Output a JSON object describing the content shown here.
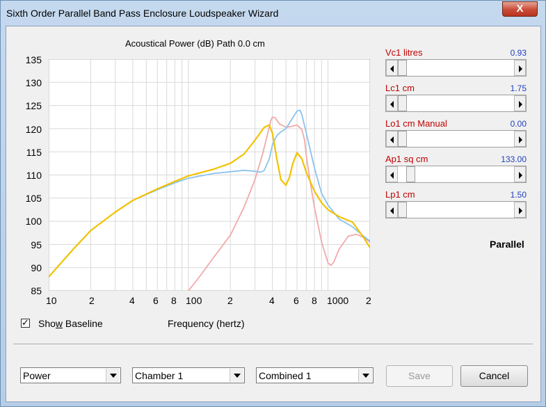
{
  "window": {
    "title": "Sixth Order Parallel Band Pass Enclosure Loudspeaker Wizard",
    "close_label": "X"
  },
  "plot": {
    "title": "Acoustical Power (dB)   Path 0.0 cm",
    "x_axis_label": "Frequency (hertz)",
    "y_ticks": [
      "135",
      "130",
      "125",
      "120",
      "115",
      "110",
      "105",
      "100",
      "95",
      "90",
      "85"
    ],
    "x_tick_labels": [
      "10",
      "2",
      "4",
      "6",
      "8",
      "100",
      "2",
      "4",
      "6",
      "8",
      "1000",
      "2"
    ],
    "colors": {
      "blue": "#8ac3ee",
      "pink": "#f2a9a9",
      "yellow": "#f2c200"
    }
  },
  "chart_data": {
    "type": "line",
    "xscale": "log",
    "xlim": [
      10,
      2000
    ],
    "ylim": [
      85,
      135
    ],
    "series": [
      {
        "color": "#f2c200",
        "x": [
          10,
          15,
          20,
          30,
          40,
          60,
          80,
          100,
          150,
          200,
          250,
          300,
          350,
          380,
          400,
          430,
          460,
          500,
          530,
          560,
          600,
          650,
          700,
          800,
          900,
          1000,
          1200,
          1500,
          1800,
          2000
        ],
        "y": [
          88,
          94,
          98,
          102,
          104.5,
          107,
          108.6,
          109.8,
          111.2,
          112.5,
          114.5,
          117.5,
          120.3,
          120.8,
          119,
          113.5,
          109,
          107.8,
          109.5,
          112.5,
          114.8,
          113.5,
          110.5,
          106.5,
          104,
          102.5,
          101,
          99.8,
          96.5,
          94.3
        ]
      },
      {
        "color": "#8ac3ee",
        "x": [
          10,
          15,
          20,
          30,
          40,
          60,
          80,
          100,
          150,
          200,
          250,
          300,
          330,
          350,
          380,
          400,
          430,
          460,
          500,
          550,
          600,
          630,
          650,
          700,
          800,
          900,
          1000,
          1200,
          1500,
          1800,
          2000
        ],
        "y": [
          88,
          94,
          98,
          102,
          104.5,
          106.8,
          108.3,
          109.3,
          110.3,
          110.7,
          111,
          110.8,
          110.6,
          111,
          113.5,
          116.5,
          118.5,
          119.3,
          120,
          122,
          123.8,
          124,
          123,
          119,
          111.5,
          106,
          103.5,
          100.5,
          98.8,
          96.8,
          95.7
        ]
      },
      {
        "color": "#f2a9a9",
        "x": [
          100,
          120,
          150,
          200,
          250,
          300,
          340,
          370,
          390,
          400,
          420,
          450,
          500,
          550,
          600,
          650,
          680,
          700,
          750,
          800,
          900,
          1000,
          1050,
          1100,
          1200,
          1400,
          1600,
          1800,
          2000
        ],
        "y": [
          85,
          88,
          92,
          97,
          103,
          109,
          114.5,
          119,
          121.8,
          122.5,
          122.3,
          121,
          120.3,
          120.5,
          120.8,
          119.8,
          117.5,
          114,
          108,
          103,
          95.5,
          91,
          90.5,
          91.2,
          94,
          96.8,
          97.2,
          96.5,
          95.5
        ]
      }
    ]
  },
  "baseline": {
    "label_pre": "Sho",
    "label_accel": "w",
    "label_post": " Baseline",
    "checked": true,
    "check_glyph": "✓"
  },
  "params": [
    {
      "label": "Vc1  litres",
      "value": "0.93",
      "level": 0.0
    },
    {
      "label": "Lc1  cm",
      "value": "1.75",
      "level": 0.0
    },
    {
      "label": "Lo1  cm  Manual",
      "value": "0.00",
      "level": 0.0
    },
    {
      "label": "Ap1  sq cm",
      "value": "133.00",
      "level": 0.08
    },
    {
      "label": "Lp1  cm",
      "value": "1.50",
      "level": 0.0
    }
  ],
  "mode_label": "Parallel",
  "dropdowns": {
    "plot_type": "Power",
    "chamber": "Chamber 1",
    "combined": "Combined 1"
  },
  "buttons": {
    "save": "Save",
    "cancel": "Cancel"
  }
}
